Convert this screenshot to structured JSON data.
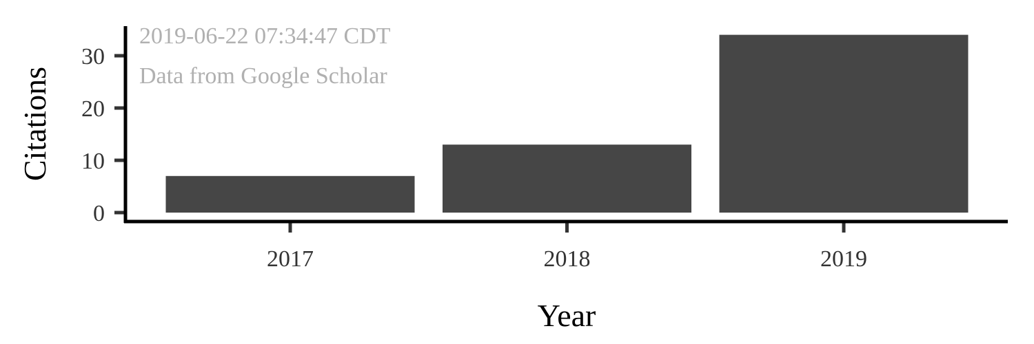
{
  "chart_data": {
    "type": "bar",
    "categories": [
      "2017",
      "2018",
      "2019"
    ],
    "values": [
      7,
      13,
      34
    ],
    "xlabel": "Year",
    "ylabel": "Citations",
    "ylim": [
      0,
      35
    ],
    "yticks": [
      "0",
      "10",
      "20",
      "30"
    ],
    "ytick_values": [
      0,
      10,
      20,
      30
    ],
    "annotations": [
      "2019-06-22 07:34:47 CDT",
      "Data from Google Scholar"
    ],
    "grid": false,
    "legend": "none",
    "colors": {
      "bar": "#464646",
      "axis": "#000000",
      "annotation": "#b0b0b0"
    }
  }
}
